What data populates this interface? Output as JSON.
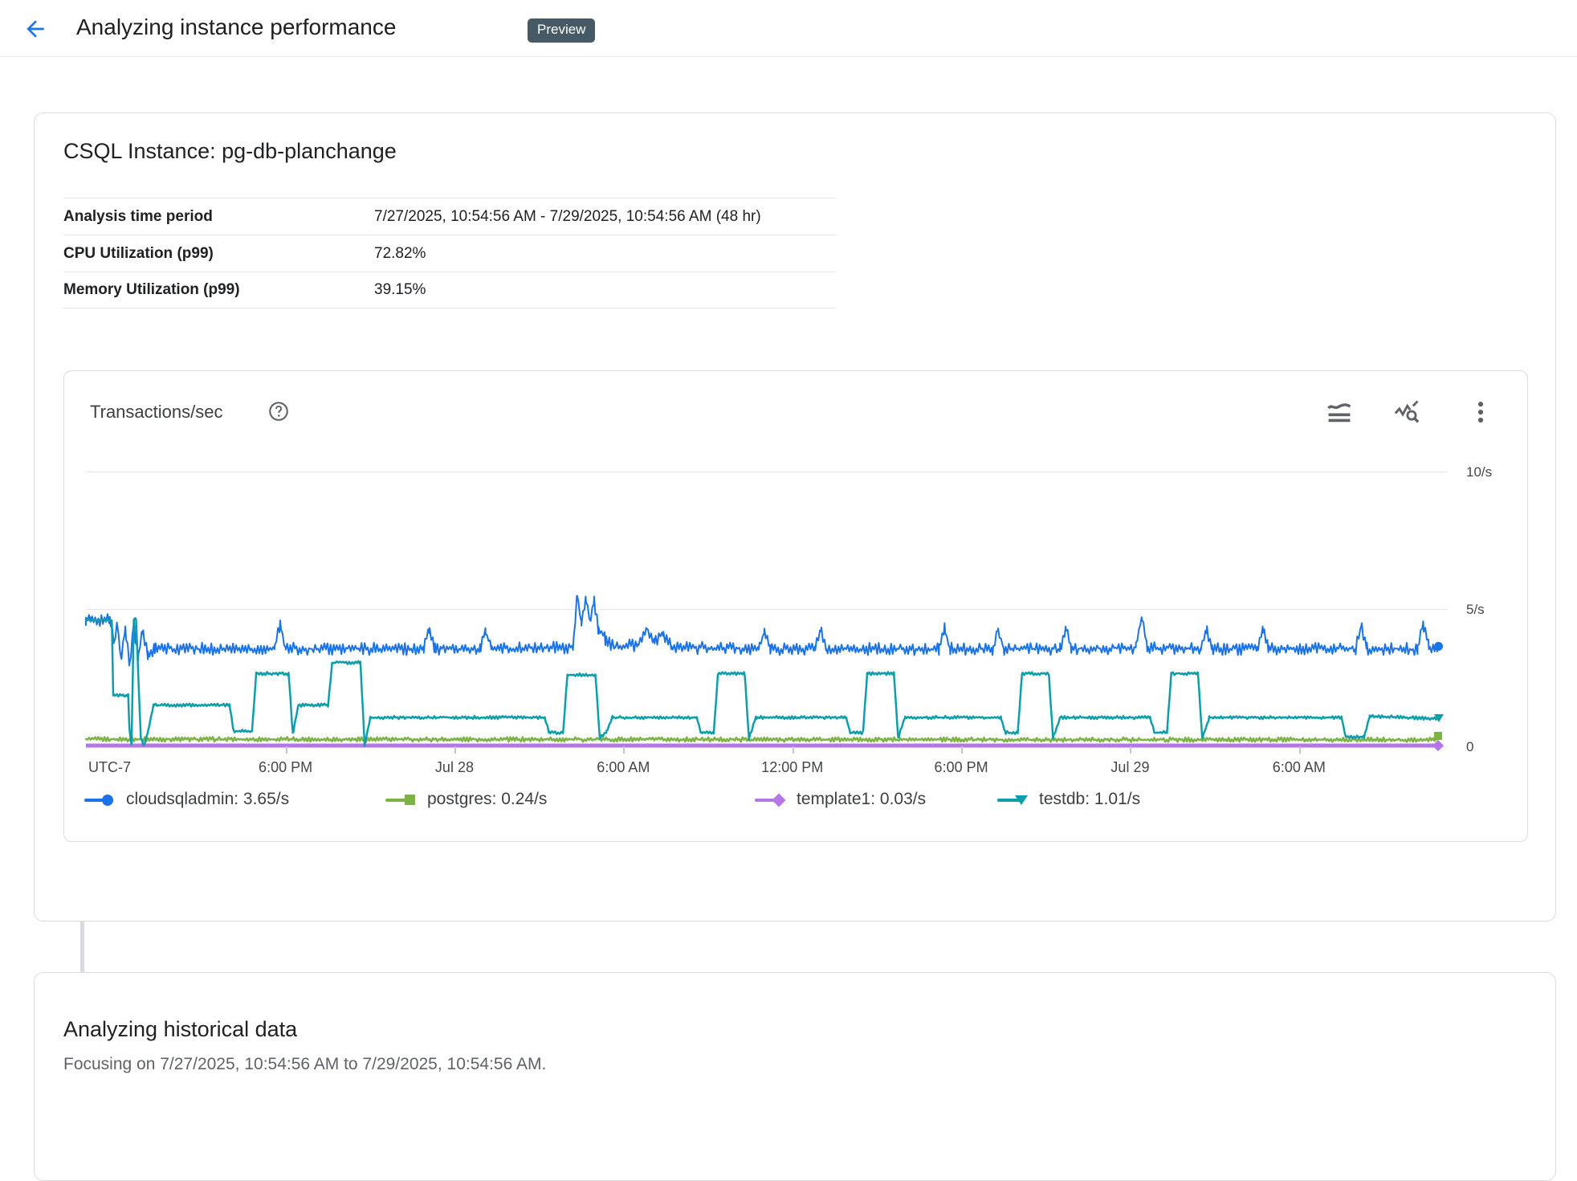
{
  "header": {
    "title": "Analyzing instance performance",
    "badge": "Preview"
  },
  "instance_card": {
    "title": "CSQL Instance: pg-db-planchange",
    "rows": [
      {
        "label": "Analysis time period",
        "value": "7/27/2025, 10:54:56 AM - 7/29/2025, 10:54:56 AM (48 hr)"
      },
      {
        "label": "CPU Utilization (p99)",
        "value": "72.82%"
      },
      {
        "label": "Memory Utilization (p99)",
        "value": "39.15%"
      }
    ]
  },
  "chart_card": {
    "title": "Transactions/sec",
    "toolbar_icons": [
      "area-chart",
      "chart-explore",
      "more-vert"
    ]
  },
  "chart_data": {
    "type": "line",
    "title": "Transactions/sec",
    "x_axis": {
      "label_left": "UTC-7",
      "start": "7/27/2025, 10:54:56 AM",
      "end": "7/29/2025, 10:54:56 AM",
      "span_hours": 48,
      "ticks": [
        {
          "hour": 7.09,
          "label": "6:00 PM"
        },
        {
          "hour": 13.09,
          "label": "Jul 28"
        },
        {
          "hour": 19.09,
          "label": "6:00 AM"
        },
        {
          "hour": 25.09,
          "label": "12:00 PM"
        },
        {
          "hour": 31.09,
          "label": "6:00 PM"
        },
        {
          "hour": 37.09,
          "label": "Jul 29"
        },
        {
          "hour": 43.09,
          "label": "6:00 AM"
        }
      ]
    },
    "y_axis": {
      "min": 0,
      "max": 10,
      "unit": "/s",
      "ticks": [
        {
          "value": 10,
          "label": "10/s"
        },
        {
          "value": 5,
          "label": "5/s"
        },
        {
          "value": 0,
          "label": "0"
        }
      ]
    },
    "grid": "horizontal-only",
    "legend_position": "bottom",
    "series": [
      {
        "name": "cloudsqladmin",
        "current": "3.65/s",
        "legend_label": "cloudsqladmin: 3.65/s",
        "color": "#1a73e8",
        "marker": "circle",
        "stroke": 2,
        "noise": 0.14,
        "keypoints": [
          [
            0,
            4.62
          ],
          [
            0.85,
            4.6
          ],
          [
            1.0,
            3.75
          ],
          [
            1.1,
            4.5
          ],
          [
            1.25,
            3.2
          ],
          [
            1.4,
            4.3
          ],
          [
            1.55,
            3.0
          ],
          [
            1.7,
            4.55
          ],
          [
            1.85,
            3.15
          ],
          [
            2.0,
            4.2
          ],
          [
            2.2,
            3.35
          ],
          [
            2.45,
            3.55
          ],
          [
            6.7,
            3.55
          ],
          [
            6.9,
            4.5
          ],
          [
            7.1,
            3.55
          ],
          [
            12.0,
            3.55
          ],
          [
            12.2,
            4.35
          ],
          [
            12.4,
            3.55
          ],
          [
            14.0,
            3.55
          ],
          [
            14.2,
            4.2
          ],
          [
            14.4,
            3.55
          ],
          [
            17.3,
            3.6
          ],
          [
            17.45,
            5.5
          ],
          [
            17.6,
            4.4
          ],
          [
            17.75,
            5.45
          ],
          [
            17.9,
            4.6
          ],
          [
            18.05,
            5.3
          ],
          [
            18.2,
            4.3
          ],
          [
            18.45,
            3.9
          ],
          [
            18.8,
            3.6
          ],
          [
            19.6,
            3.7
          ],
          [
            19.9,
            4.3
          ],
          [
            20.2,
            3.8
          ],
          [
            20.5,
            4.1
          ],
          [
            20.8,
            3.6
          ],
          [
            23.9,
            3.55
          ],
          [
            24.1,
            4.2
          ],
          [
            24.3,
            3.55
          ],
          [
            25.9,
            3.55
          ],
          [
            26.1,
            4.3
          ],
          [
            26.3,
            3.55
          ],
          [
            30.3,
            3.55
          ],
          [
            30.5,
            4.3
          ],
          [
            30.7,
            3.55
          ],
          [
            32.2,
            3.55
          ],
          [
            32.4,
            4.25
          ],
          [
            32.6,
            3.55
          ],
          [
            34.6,
            3.55
          ],
          [
            34.8,
            4.3
          ],
          [
            35.0,
            3.55
          ],
          [
            37.3,
            3.6
          ],
          [
            37.5,
            4.7
          ],
          [
            37.7,
            3.6
          ],
          [
            39.6,
            3.55
          ],
          [
            39.8,
            4.3
          ],
          [
            40.0,
            3.55
          ],
          [
            41.6,
            3.55
          ],
          [
            41.8,
            4.3
          ],
          [
            42.0,
            3.55
          ],
          [
            45.1,
            3.55
          ],
          [
            45.3,
            4.4
          ],
          [
            45.5,
            3.55
          ],
          [
            47.3,
            3.55
          ],
          [
            47.5,
            4.45
          ],
          [
            47.7,
            3.6
          ],
          [
            48,
            3.65
          ]
        ]
      },
      {
        "name": "postgres",
        "current": "0.24/s",
        "legend_label": "postgres: 0.24/s",
        "color": "#7cb342",
        "marker": "square",
        "stroke": 2.5,
        "noise": 0.05,
        "keypoints": [
          [
            0,
            0.26
          ],
          [
            48,
            0.24
          ]
        ]
      },
      {
        "name": "template1",
        "current": "0.03/s",
        "legend_label": "template1: 0.03/s",
        "color": "#b477e8",
        "marker": "diamond",
        "stroke": 5,
        "noise": 0,
        "keypoints": [
          [
            0,
            0.03
          ],
          [
            48,
            0.03
          ]
        ]
      },
      {
        "name": "testdb",
        "current": "1.01/s",
        "legend_label": "testdb: 1.01/s",
        "color": "#0c9fab",
        "marker": "triangle-down",
        "stroke": 2.5,
        "noise": 0.035,
        "keypoints": [
          [
            0,
            4.6
          ],
          [
            0.92,
            4.6
          ],
          [
            0.97,
            1.85
          ],
          [
            1.5,
            1.85
          ],
          [
            1.55,
            0.55
          ],
          [
            1.62,
            0.05
          ],
          [
            1.7,
            4.6
          ],
          [
            1.78,
            4.65
          ],
          [
            1.95,
            0.3
          ],
          [
            2.05,
            0.02
          ],
          [
            2.2,
            0.5
          ],
          [
            2.4,
            1.5
          ],
          [
            5.1,
            1.5
          ],
          [
            5.25,
            0.55
          ],
          [
            5.9,
            0.55
          ],
          [
            6.05,
            2.65
          ],
          [
            7.2,
            2.65
          ],
          [
            7.35,
            0.45
          ],
          [
            7.55,
            1.5
          ],
          [
            8.6,
            1.5
          ],
          [
            8.75,
            3.05
          ],
          [
            9.75,
            3.05
          ],
          [
            9.9,
            0.05
          ],
          [
            10.1,
            1.05
          ],
          [
            16.3,
            1.05
          ],
          [
            16.45,
            0.5
          ],
          [
            16.95,
            0.5
          ],
          [
            17.1,
            2.6
          ],
          [
            18.1,
            2.6
          ],
          [
            18.25,
            0.3
          ],
          [
            18.5,
            0.55
          ],
          [
            18.7,
            1.05
          ],
          [
            21.7,
            1.05
          ],
          [
            21.85,
            0.5
          ],
          [
            22.3,
            0.5
          ],
          [
            22.45,
            2.65
          ],
          [
            23.4,
            2.65
          ],
          [
            23.55,
            0.3
          ],
          [
            23.8,
            1.05
          ],
          [
            27.0,
            1.05
          ],
          [
            27.15,
            0.5
          ],
          [
            27.6,
            0.5
          ],
          [
            27.75,
            2.65
          ],
          [
            28.7,
            2.65
          ],
          [
            28.85,
            0.3
          ],
          [
            29.1,
            1.05
          ],
          [
            32.5,
            1.05
          ],
          [
            32.65,
            0.5
          ],
          [
            33.1,
            0.5
          ],
          [
            33.25,
            2.65
          ],
          [
            34.2,
            2.65
          ],
          [
            34.35,
            0.3
          ],
          [
            34.6,
            1.05
          ],
          [
            37.8,
            1.05
          ],
          [
            37.95,
            0.5
          ],
          [
            38.4,
            0.5
          ],
          [
            38.55,
            2.65
          ],
          [
            39.5,
            2.65
          ],
          [
            39.65,
            0.3
          ],
          [
            39.9,
            1.05
          ],
          [
            44.6,
            1.05
          ],
          [
            44.75,
            0.35
          ],
          [
            45.4,
            0.35
          ],
          [
            45.6,
            1.1
          ],
          [
            48,
            1.01
          ]
        ]
      }
    ]
  },
  "analysis_card": {
    "title": "Analyzing historical data",
    "body": "Focusing on 7/27/2025, 10:54:56 AM to 7/29/2025, 10:54:56 AM."
  }
}
